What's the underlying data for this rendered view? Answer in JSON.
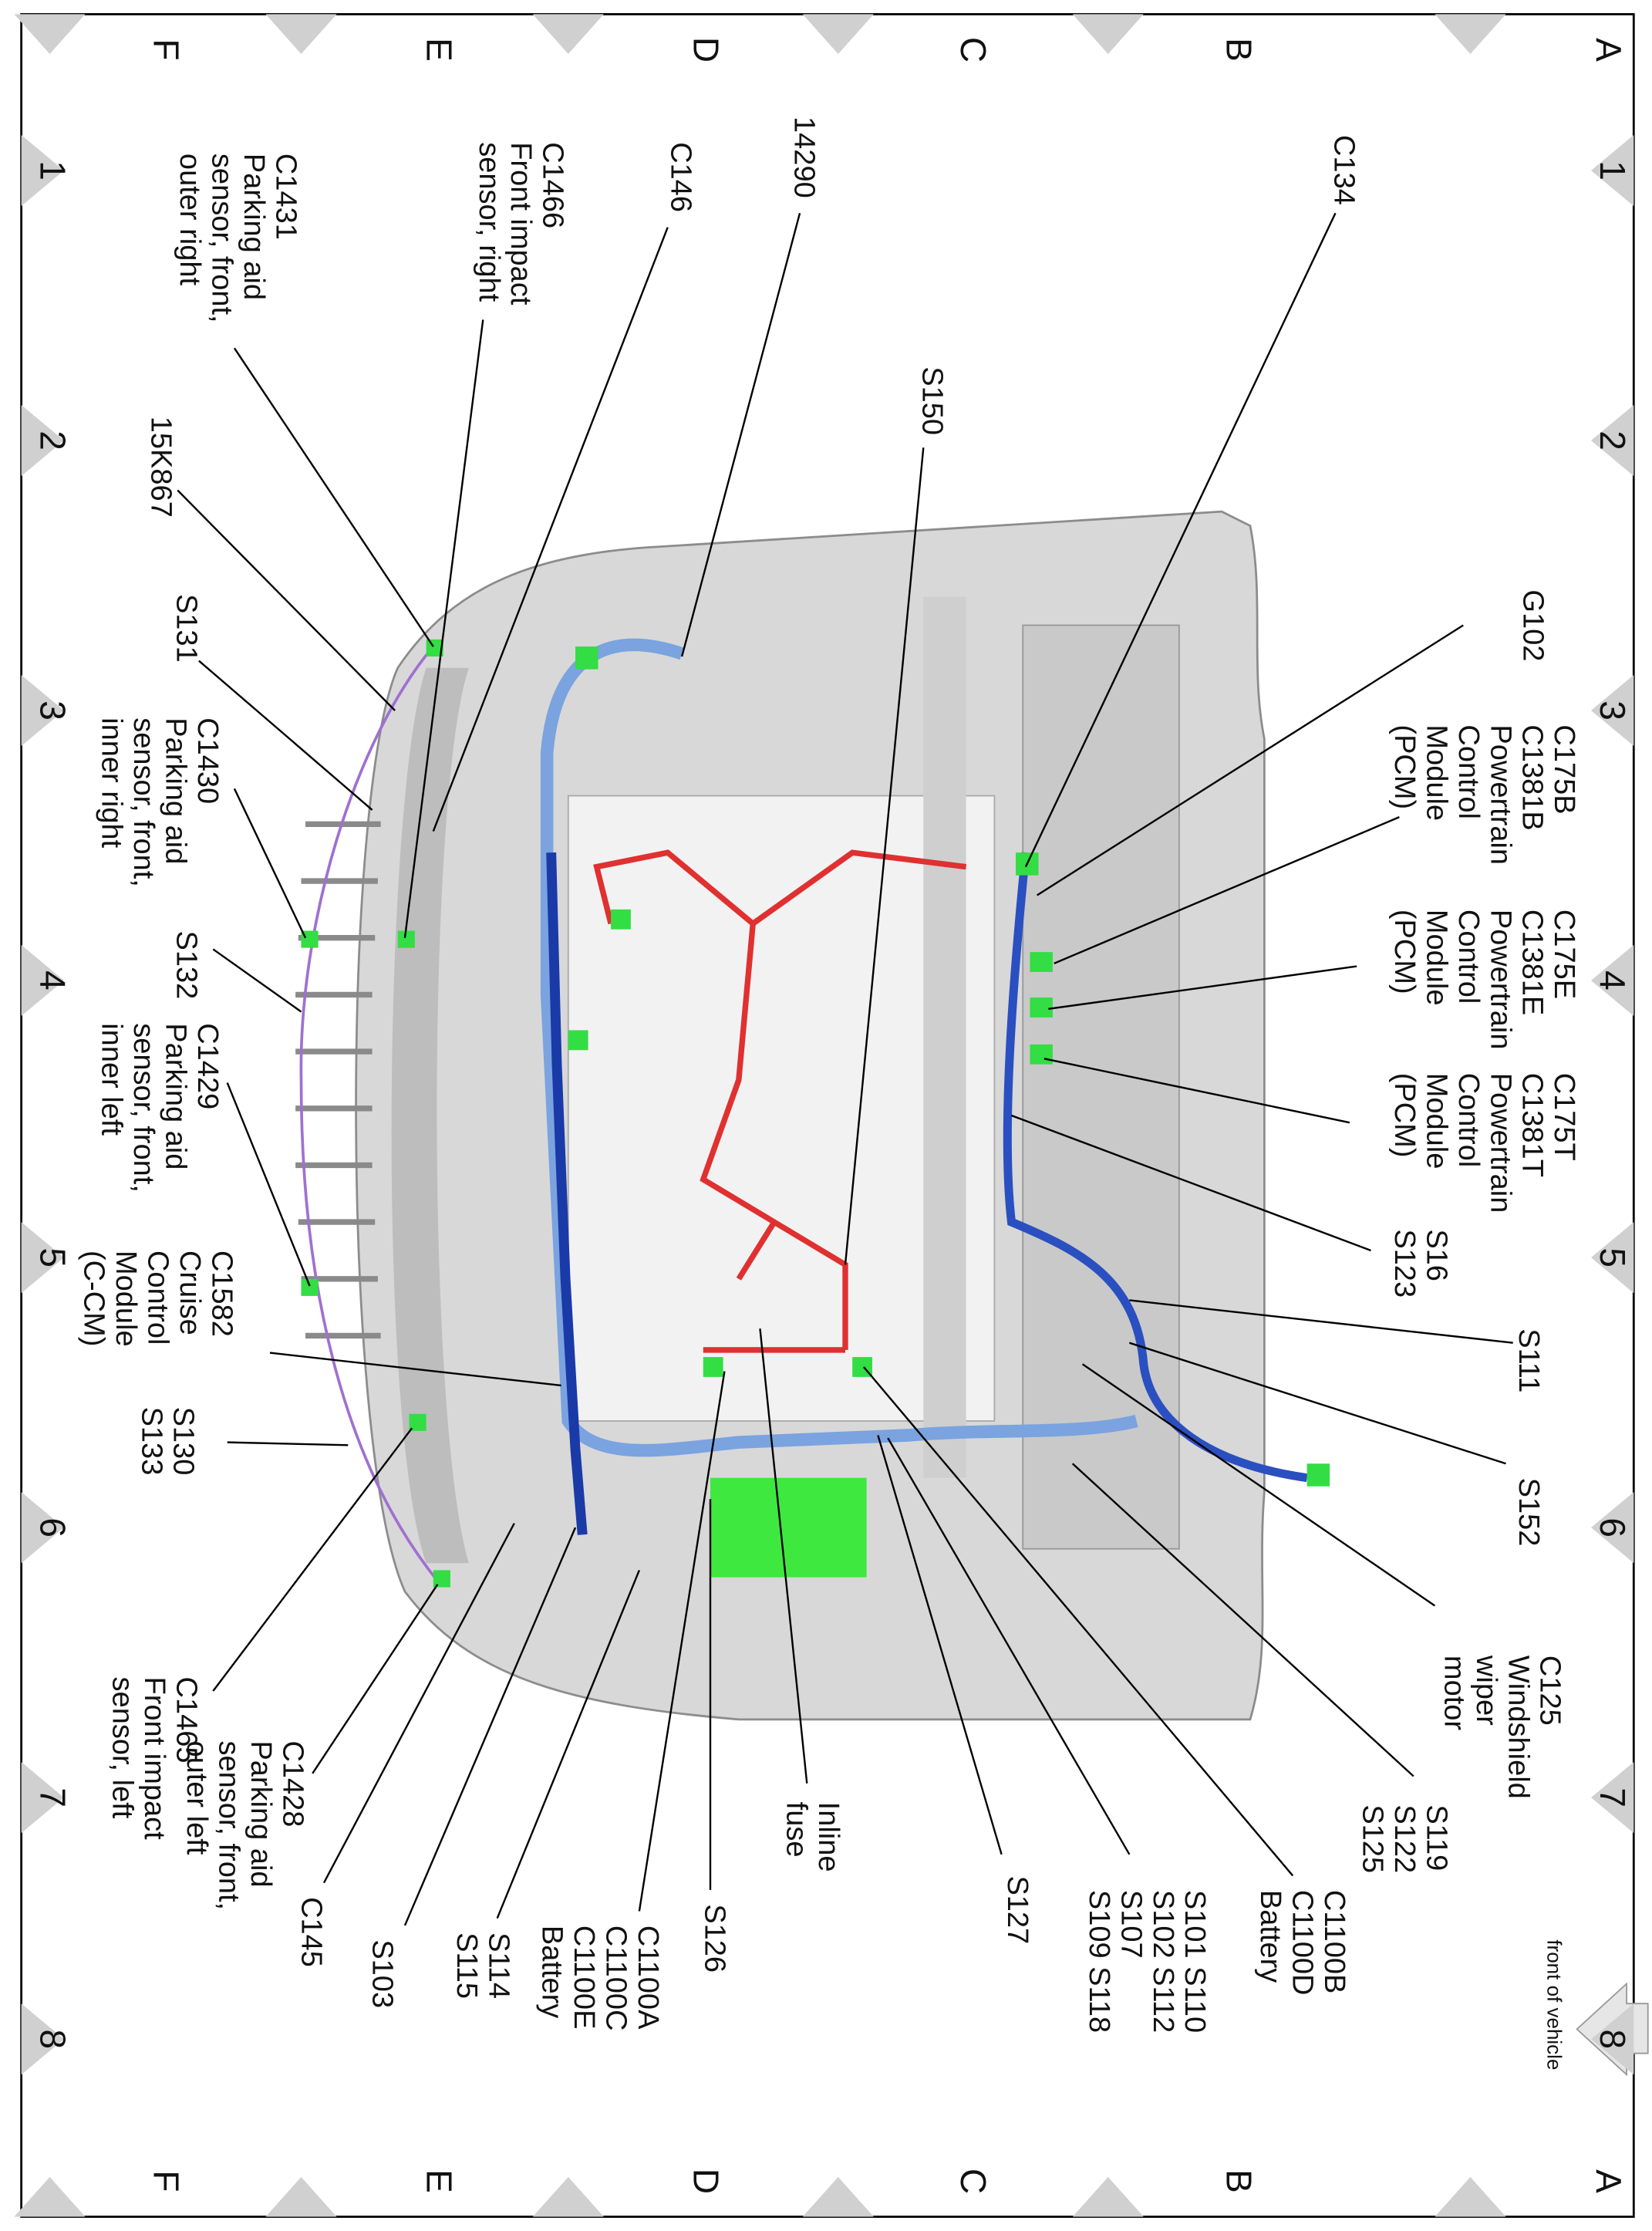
{
  "grid": {
    "columns": [
      "1",
      "2",
      "3",
      "4",
      "5",
      "6",
      "7",
      "8"
    ],
    "rows": [
      "A",
      "B",
      "C",
      "D",
      "E",
      "F"
    ]
  },
  "labels": [
    {
      "lines": [
        "C134"
      ]
    },
    {
      "lines": [
        "S150"
      ]
    },
    {
      "lines": [
        "14290"
      ]
    },
    {
      "lines": [
        "C146"
      ]
    },
    {
      "lines": [
        "C1466",
        "Front impact",
        "sensor, right"
      ]
    },
    {
      "lines": [
        "C1431",
        "Parking aid",
        "sensor, front,",
        "outer right"
      ]
    },
    {
      "lines": [
        "15K867"
      ]
    },
    {
      "lines": [
        "S131"
      ]
    },
    {
      "lines": [
        "C1430",
        "Parking aid",
        "sensor, front,",
        "inner right"
      ]
    },
    {
      "lines": [
        "S132"
      ]
    },
    {
      "lines": [
        "C1429",
        "Parking aid",
        "sensor, front,",
        "inner left"
      ]
    },
    {
      "lines": [
        "C1582",
        "Cruise",
        "Control",
        "Module",
        "(C-CM)"
      ]
    },
    {
      "lines": [
        "S130",
        "S133"
      ]
    },
    {
      "lines": [
        "C1465",
        "Front impact",
        "sensor, left"
      ]
    },
    {
      "lines": [
        "C1428",
        "Parking aid",
        "sensor, front,",
        "outer left"
      ]
    },
    {
      "lines": [
        "C145"
      ]
    },
    {
      "lines": [
        "S103"
      ]
    },
    {
      "lines": [
        "S114",
        "S115"
      ]
    },
    {
      "lines": [
        "C1100A",
        "C1100C",
        "C1100E",
        "Battery"
      ]
    },
    {
      "lines": [
        "S126"
      ]
    },
    {
      "lines": [
        "Inline",
        "fuse"
      ]
    },
    {
      "lines": [
        "S127"
      ]
    },
    {
      "lines": [
        "S101  S110",
        "S102  S112",
        "S107",
        "S109  S118"
      ]
    },
    {
      "lines": [
        "C1100B",
        "C1100D",
        "Battery"
      ]
    },
    {
      "lines": [
        "S119",
        "S122",
        "S125"
      ]
    },
    {
      "lines": [
        "C125",
        "Windshield",
        "wiper",
        "motor"
      ]
    },
    {
      "lines": [
        "S152"
      ]
    },
    {
      "lines": [
        "S111"
      ]
    },
    {
      "lines": [
        "S16",
        "S123"
      ]
    },
    {
      "lines": [
        "C175T",
        "C1381T",
        "Powertrain",
        "Control",
        "Module",
        "(PCM)"
      ]
    },
    {
      "lines": [
        "C175E",
        "C1381E",
        "Powertrain",
        "Control",
        "Module",
        "(PCM)"
      ]
    },
    {
      "lines": [
        "C175B",
        "C1381B",
        "Powertrain",
        "Control",
        "Module",
        "(PCM)"
      ]
    },
    {
      "lines": [
        "G102"
      ]
    }
  ],
  "footer": {
    "note": "front of vehicle"
  }
}
